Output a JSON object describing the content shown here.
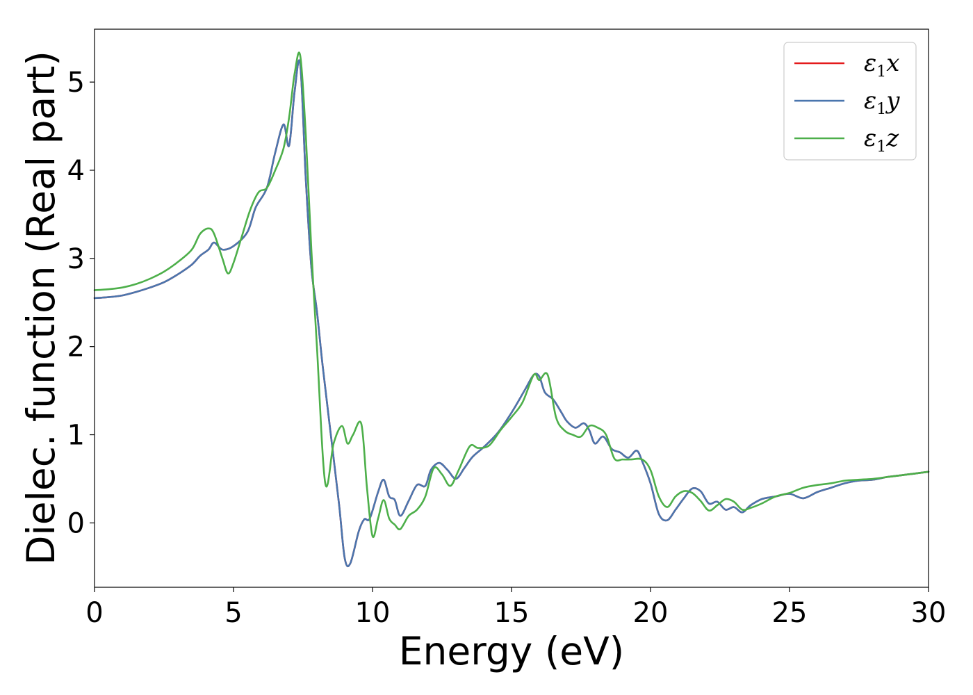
{
  "chart_data": {
    "type": "line",
    "xlabel": "Energy (eV)",
    "ylabel": "Dielec. function (Real part)",
    "xlim": [
      0,
      30
    ],
    "ylim": [
      -0.73,
      5.6
    ],
    "xticks": [
      0,
      5,
      10,
      15,
      20,
      25,
      30
    ],
    "yticks": [
      0,
      1,
      2,
      3,
      4,
      5
    ],
    "grid": false,
    "legend_position": "top-right",
    "series": [
      {
        "name": "ε1x",
        "legend": {
          "sym": "ε",
          "sub": "1",
          "var": "x"
        },
        "color": "#e41a1c",
        "x": [
          0,
          0.5,
          1,
          1.5,
          2,
          2.5,
          3,
          3.5,
          3.8,
          4.1,
          4.3,
          4.6,
          5,
          5.5,
          5.8,
          6.2,
          6.5,
          6.8,
          7.0,
          7.2,
          7.4,
          7.6,
          7.8,
          8.0,
          8.2,
          8.5,
          8.8,
          9.0,
          9.2,
          9.5,
          9.7,
          9.9,
          10.2,
          10.4,
          10.6,
          10.8,
          11.0,
          11.3,
          11.6,
          11.9,
          12.1,
          12.4,
          12.7,
          13.0,
          13.3,
          13.6,
          14.0,
          14.5,
          15.0,
          15.5,
          15.8,
          16.0,
          16.2,
          16.5,
          16.8,
          17.0,
          17.3,
          17.6,
          17.8,
          18.0,
          18.3,
          18.6,
          18.9,
          19.2,
          19.5,
          19.7,
          20.0,
          20.3,
          20.6,
          20.9,
          21.2,
          21.5,
          21.8,
          22.1,
          22.4,
          22.7,
          23.0,
          23.3,
          23.6,
          24.0,
          24.5,
          25.0,
          25.5,
          26.0,
          26.5,
          27.0,
          27.5,
          28.0,
          28.5,
          29.0,
          29.5,
          30.0
        ],
        "y": [
          2.55,
          2.56,
          2.58,
          2.62,
          2.67,
          2.73,
          2.82,
          2.93,
          3.03,
          3.1,
          3.18,
          3.1,
          3.14,
          3.3,
          3.58,
          3.8,
          4.2,
          4.52,
          4.28,
          4.9,
          5.2,
          3.9,
          2.9,
          2.4,
          1.8,
          1.0,
          0.2,
          -0.4,
          -0.46,
          -0.1,
          0.04,
          0.05,
          0.35,
          0.49,
          0.3,
          0.26,
          0.08,
          0.25,
          0.43,
          0.42,
          0.6,
          0.68,
          0.6,
          0.5,
          0.62,
          0.75,
          0.86,
          1.02,
          1.25,
          1.52,
          1.68,
          1.66,
          1.48,
          1.4,
          1.25,
          1.15,
          1.08,
          1.13,
          1.05,
          0.9,
          0.98,
          0.84,
          0.8,
          0.74,
          0.82,
          0.7,
          0.45,
          0.1,
          0.03,
          0.15,
          0.28,
          0.39,
          0.36,
          0.22,
          0.24,
          0.15,
          0.18,
          0.12,
          0.2,
          0.27,
          0.3,
          0.33,
          0.28,
          0.35,
          0.4,
          0.45,
          0.48,
          0.49,
          0.52,
          0.54,
          0.56,
          0.58
        ]
      },
      {
        "name": "ε1y",
        "legend": {
          "sym": "ε",
          "sub": "1",
          "var": "y"
        },
        "color": "#4a76ae",
        "x": [
          0,
          0.5,
          1,
          1.5,
          2,
          2.5,
          3,
          3.5,
          3.8,
          4.1,
          4.3,
          4.6,
          5,
          5.5,
          5.8,
          6.2,
          6.5,
          6.8,
          7.0,
          7.2,
          7.4,
          7.6,
          7.8,
          8.0,
          8.2,
          8.5,
          8.8,
          9.0,
          9.2,
          9.5,
          9.7,
          9.9,
          10.2,
          10.4,
          10.6,
          10.8,
          11.0,
          11.3,
          11.6,
          11.9,
          12.1,
          12.4,
          12.7,
          13.0,
          13.3,
          13.6,
          14.0,
          14.5,
          15.0,
          15.5,
          15.8,
          16.0,
          16.2,
          16.5,
          16.8,
          17.0,
          17.3,
          17.6,
          17.8,
          18.0,
          18.3,
          18.6,
          18.9,
          19.2,
          19.5,
          19.7,
          20.0,
          20.3,
          20.6,
          20.9,
          21.2,
          21.5,
          21.8,
          22.1,
          22.4,
          22.7,
          23.0,
          23.3,
          23.6,
          24.0,
          24.5,
          25.0,
          25.5,
          26.0,
          26.5,
          27.0,
          27.5,
          28.0,
          28.5,
          29.0,
          29.5,
          30.0
        ],
        "y": [
          2.55,
          2.56,
          2.58,
          2.62,
          2.67,
          2.73,
          2.82,
          2.93,
          3.03,
          3.1,
          3.18,
          3.1,
          3.14,
          3.3,
          3.58,
          3.8,
          4.2,
          4.52,
          4.28,
          4.9,
          5.2,
          3.9,
          2.9,
          2.4,
          1.8,
          1.0,
          0.2,
          -0.4,
          -0.46,
          -0.1,
          0.04,
          0.05,
          0.35,
          0.49,
          0.3,
          0.26,
          0.08,
          0.25,
          0.43,
          0.42,
          0.6,
          0.68,
          0.6,
          0.5,
          0.62,
          0.75,
          0.86,
          1.02,
          1.25,
          1.52,
          1.68,
          1.66,
          1.48,
          1.4,
          1.25,
          1.15,
          1.08,
          1.13,
          1.05,
          0.9,
          0.98,
          0.84,
          0.8,
          0.74,
          0.82,
          0.7,
          0.45,
          0.1,
          0.03,
          0.15,
          0.28,
          0.39,
          0.36,
          0.22,
          0.24,
          0.15,
          0.18,
          0.12,
          0.2,
          0.27,
          0.3,
          0.33,
          0.28,
          0.35,
          0.4,
          0.45,
          0.48,
          0.49,
          0.52,
          0.54,
          0.56,
          0.58
        ]
      },
      {
        "name": "ε1z",
        "legend": {
          "sym": "ε",
          "sub": "1",
          "var": "z"
        },
        "color": "#4daf4a",
        "x": [
          0,
          0.5,
          1,
          1.5,
          2,
          2.5,
          3,
          3.5,
          3.8,
          4.1,
          4.3,
          4.6,
          4.8,
          5.0,
          5.3,
          5.6,
          5.9,
          6.2,
          6.5,
          6.8,
          7.0,
          7.2,
          7.4,
          7.6,
          7.8,
          8.0,
          8.3,
          8.6,
          8.9,
          9.1,
          9.3,
          9.6,
          9.8,
          10.0,
          10.2,
          10.4,
          10.6,
          10.8,
          11.0,
          11.3,
          11.6,
          11.9,
          12.2,
          12.5,
          12.8,
          13.1,
          13.5,
          13.8,
          14.2,
          14.6,
          15.0,
          15.4,
          15.8,
          16.0,
          16.3,
          16.6,
          16.9,
          17.2,
          17.5,
          17.8,
          18.1,
          18.4,
          18.7,
          19.0,
          19.3,
          19.7,
          20.0,
          20.3,
          20.6,
          20.9,
          21.2,
          21.5,
          21.8,
          22.1,
          22.4,
          22.7,
          23.0,
          23.3,
          23.6,
          24.0,
          24.5,
          25.0,
          25.5,
          26.0,
          26.5,
          27.0,
          27.5,
          28.0,
          28.5,
          29.0,
          29.5,
          30.0
        ],
        "y": [
          2.64,
          2.65,
          2.67,
          2.71,
          2.77,
          2.85,
          2.96,
          3.1,
          3.28,
          3.34,
          3.28,
          3.0,
          2.83,
          2.95,
          3.25,
          3.55,
          3.75,
          3.8,
          4.0,
          4.25,
          4.6,
          5.1,
          5.3,
          4.4,
          3.1,
          2.0,
          0.45,
          0.9,
          1.1,
          0.9,
          1.0,
          1.12,
          0.4,
          -0.15,
          0.05,
          0.26,
          0.05,
          -0.02,
          -0.07,
          0.08,
          0.15,
          0.3,
          0.62,
          0.55,
          0.42,
          0.6,
          0.87,
          0.85,
          0.88,
          1.05,
          1.2,
          1.37,
          1.68,
          1.62,
          1.68,
          1.2,
          1.05,
          1.0,
          0.98,
          1.1,
          1.08,
          1.0,
          0.73,
          0.72,
          0.72,
          0.72,
          0.6,
          0.3,
          0.18,
          0.3,
          0.36,
          0.34,
          0.25,
          0.14,
          0.2,
          0.27,
          0.24,
          0.15,
          0.17,
          0.22,
          0.3,
          0.34,
          0.4,
          0.43,
          0.45,
          0.48,
          0.49,
          0.5,
          0.52,
          0.54,
          0.56,
          0.58
        ]
      }
    ]
  }
}
